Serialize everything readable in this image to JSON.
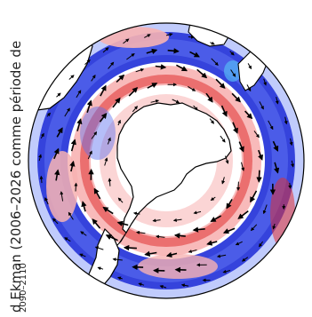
{
  "figure": {
    "caption": "d Ekman (2006–2026 comme période de",
    "period_label": "2090–2110"
  },
  "map": {
    "projection": "south-polar stereographic",
    "center": "South Pole",
    "colors": {
      "positive": "#e03131",
      "positive_light": "#f7b2b2",
      "negative": "#1f2fd8",
      "negative_mid": "#5a6ef0",
      "negative_light": "#b5c2fb",
      "land": "#ffffff",
      "coast": "#000000",
      "arrows": "#000000",
      "cyan_patch": "#55b8f5"
    },
    "layers": [
      "shaded anomaly field",
      "anomaly vectors",
      "coastlines"
    ]
  }
}
